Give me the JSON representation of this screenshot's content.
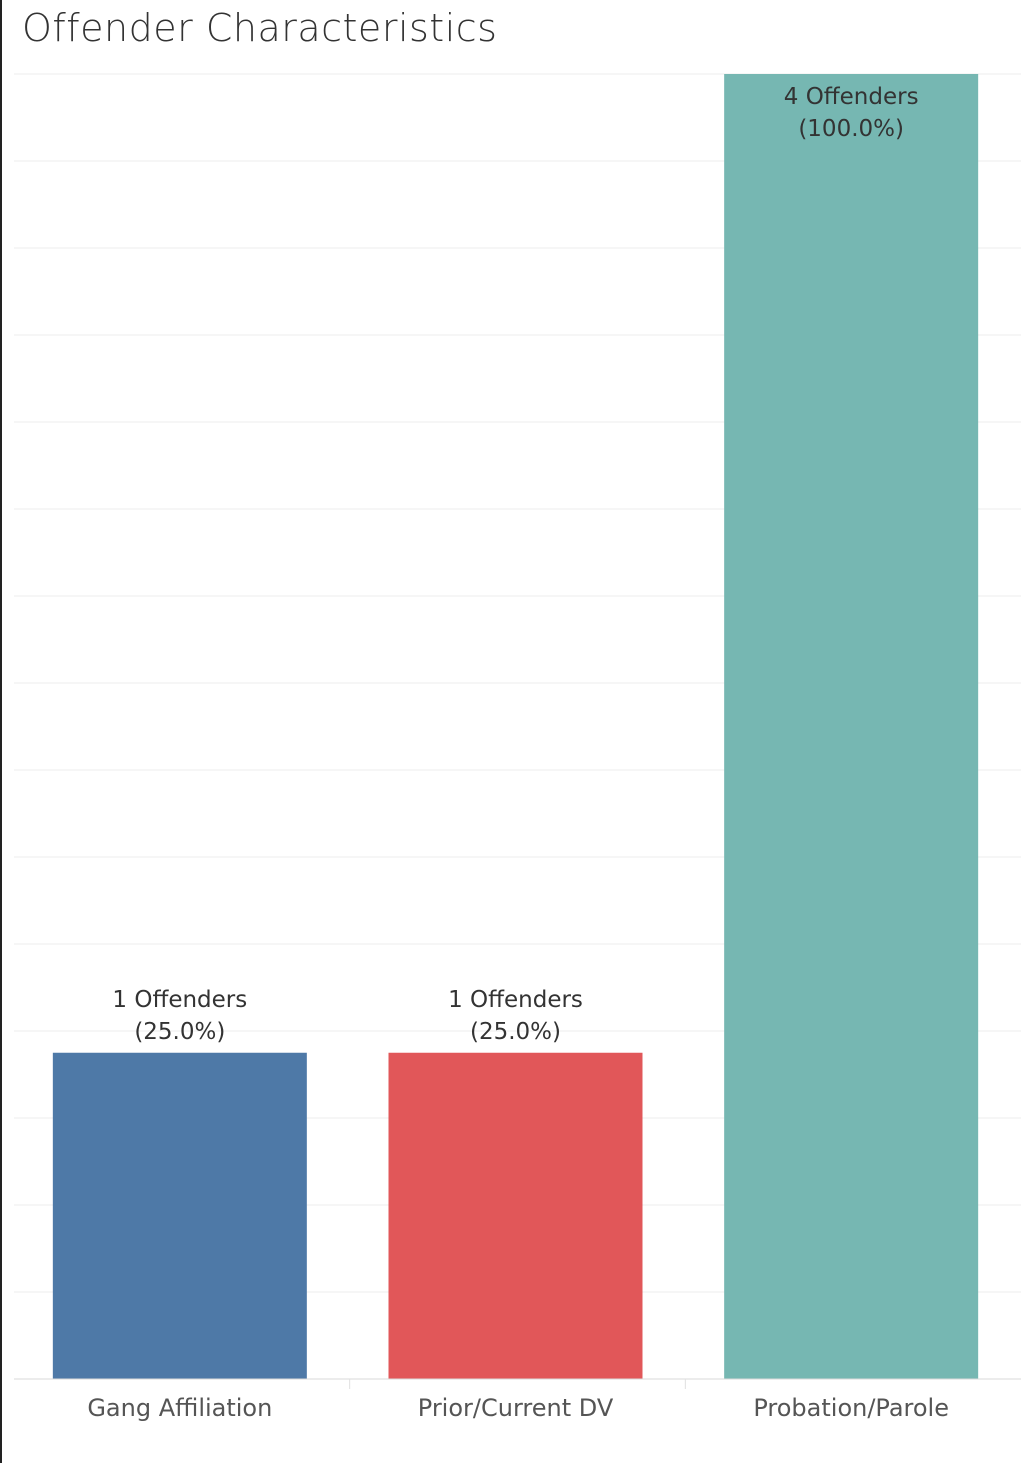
{
  "title": "Offender Characteristics",
  "chart_data": {
    "type": "bar",
    "title": "Offender Characteristics",
    "categories": [
      "Gang Affiliation",
      "Prior/Current DV",
      "Probation/Parole"
    ],
    "values": [
      1,
      1,
      4
    ],
    "labels": [
      [
        "1 Offenders",
        "(25.0%)"
      ],
      [
        "1 Offenders",
        "(25.0%)"
      ],
      [
        "4 Offenders",
        "(100.0%)"
      ]
    ],
    "colors": [
      "#4e79a7",
      "#e15759",
      "#76b7b2"
    ],
    "ylim": [
      0,
      4
    ],
    "grid": true,
    "legend": "none"
  }
}
